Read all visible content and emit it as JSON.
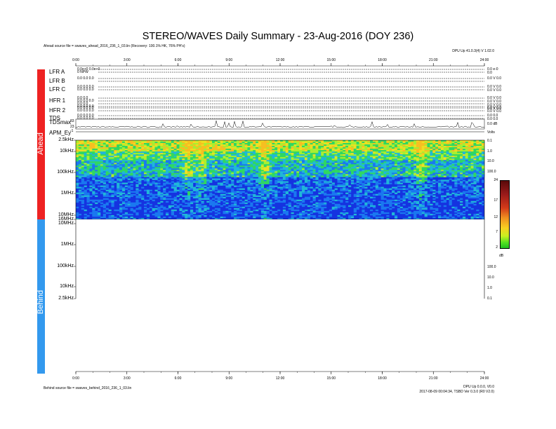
{
  "title": "STEREO/WAVES Daily Summary - 23-Aug-2016 (DOY 236)",
  "ahead_source": "Ahead source file = swaves_ahead_2016_236_1_03.lin (Recovery: 100.1% HK, 76% PH's)",
  "behind_source": "Behind source file = swaves_behind_2016_236_1_03.lin",
  "top_right_note": "DPU Up 41.0.3(4) V 1.02.0",
  "bottom_right_note1": "DPU Up 0.0.0, V0.0",
  "bottom_right_note2": "2017-08-09 00:04:34, TSBD Ver 0.3.0 (R0 V2.0)",
  "side_labels": {
    "ahead": "Ahead",
    "behind": "Behind"
  },
  "instrument_rows": [
    {
      "name": "LFR A",
      "notes": [
        "0.0e+0 0.0e+0",
        "0 NPW",
        "",
        ""
      ],
      "right": [
        "0.0 e-0",
        "0.0"
      ]
    },
    {
      "name": "LFR B",
      "notes": [
        "0.0 0.0 0.0",
        "",
        "",
        ""
      ],
      "right": [
        "0.0 V 0.0"
      ]
    },
    {
      "name": "LFR C",
      "notes": [
        "0.0 0.0 0.0",
        "0.0 0.0 0.0",
        "",
        ""
      ],
      "right": [
        "0.0 V 0.0",
        "0.0 V 0.0"
      ]
    },
    {
      "name": "HFR 1",
      "notes": [
        "0.0 0.0",
        "0.0 0.0 0.0",
        "0.0 0.0",
        "0.0 0.0 0.0"
      ],
      "right": [
        "0.0 V 0.0",
        "0.0 V 0.0",
        "0.0 V 0.0",
        "0.0 V 0.0"
      ]
    },
    {
      "name": "HFR 2",
      "notes": [
        "0.0 0.0 0.0",
        "0.0 0.0 0.0",
        "",
        ""
      ],
      "right": [
        "0.0 V 0.0",
        "0.0 V 0.0"
      ]
    },
    {
      "name": "TDS",
      "notes": [
        "0.0 0.0 0.0",
        "0.0 0.0 0.0",
        "",
        ""
      ],
      "right": [
        "0.0 0.0",
        "0.0 0.0"
      ]
    }
  ],
  "tdsmax": {
    "label": "TDSmax",
    "ymax": "83",
    "ymid": "23",
    "ymin": "-1",
    "right": "0.0 dB"
  },
  "apm": {
    "label": "APM_Ey",
    "right": "Volts"
  },
  "time_axis_ticks": [
    "0:00",
    "3:00",
    "6:00",
    "9:00",
    "12:00",
    "15:00",
    "18:00",
    "21:00",
    "24:00"
  ],
  "ahead_freq_labels": [
    "2.5kHz",
    "10kHz",
    "100kHz",
    "1MHz",
    "10MHz",
    "16MHz"
  ],
  "behind_freq_labels": [
    "10MHz",
    "1MHz",
    "100kHz",
    "10kHz",
    "2.5kHz"
  ],
  "ahead_right_labels": [
    "0.1",
    "1.0",
    "10.0",
    "100.0"
  ],
  "behind_right_labels": [
    "100.0",
    "10.0",
    "1.0",
    "0.1"
  ],
  "colorbar": {
    "ticks": [
      "24",
      "17",
      "12",
      "7",
      "2"
    ],
    "unit": "dB",
    "colors": [
      "#5a0a0a",
      "#9a1a1a",
      "#d33a1a",
      "#f09020",
      "#f8d020",
      "#c8f020",
      "#50e020",
      "#20c020"
    ]
  },
  "chart_data": {
    "type": "heatmap",
    "title": "STEREO/WAVES Daily Summary - 23-Aug-2016 (DOY 236)",
    "x_ticks": [
      "0:00",
      "3:00",
      "6:00",
      "9:00",
      "12:00",
      "15:00",
      "18:00",
      "21:00",
      "24:00"
    ],
    "xlim": [
      0,
      24
    ],
    "ahead_y_ticks": [
      "2.5kHz",
      "10kHz",
      "100kHz",
      "1MHz",
      "10MHz",
      "16MHz"
    ],
    "behind_y_ticks": [
      "10MHz",
      "1MHz",
      "100kHz",
      "10kHz",
      "2.5kHz"
    ],
    "colorbar_range_db": [
      2,
      24
    ],
    "colorbar_ticks": [
      24,
      17,
      12,
      7,
      2
    ],
    "intense_bands_hours": [
      6.5,
      7.3,
      11.0,
      20.2
    ]
  }
}
